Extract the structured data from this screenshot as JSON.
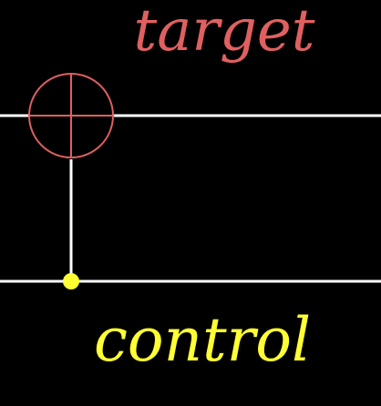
{
  "diagram": {
    "type": "cnot-gate",
    "target_label": "target",
    "control_label": "control",
    "colors": {
      "background": "#000000",
      "wire": "#ffffff",
      "target": "#e06060",
      "control": "#ffff33"
    }
  }
}
